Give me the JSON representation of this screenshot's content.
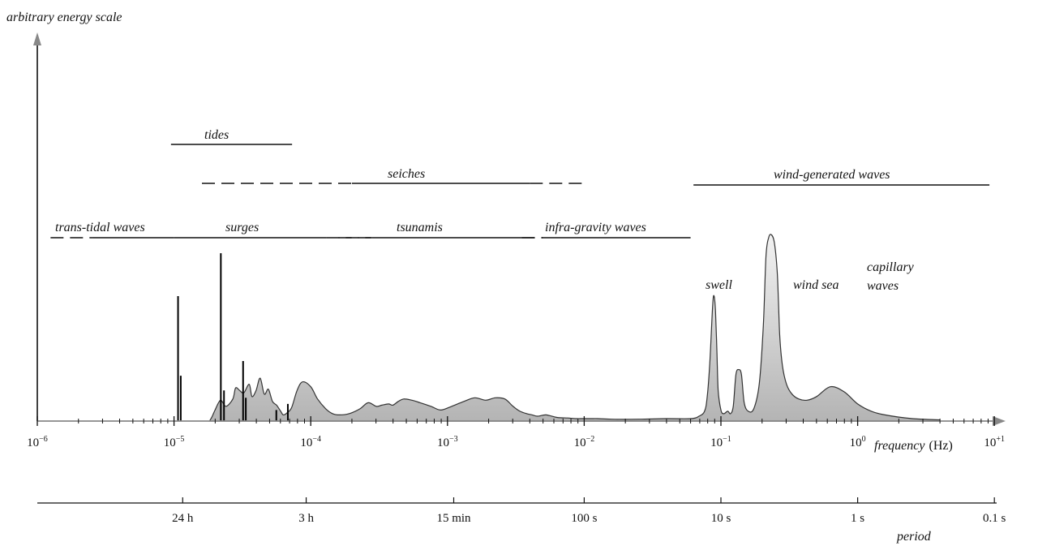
{
  "chart_data": {
    "type": "area",
    "xscale": "log",
    "xlim": [
      1e-06,
      10
    ],
    "ylabel": "arbitrary energy scale",
    "xlabel": "frequency",
    "xunit": "(Hz)",
    "x_ticks": [
      {
        "base": "10",
        "exp": "−6",
        "value": 1e-06
      },
      {
        "base": "10",
        "exp": "−5",
        "value": 1e-05
      },
      {
        "base": "10",
        "exp": "−4",
        "value": 0.0001
      },
      {
        "base": "10",
        "exp": "−3",
        "value": 0.001
      },
      {
        "base": "10",
        "exp": "−2",
        "value": 0.01
      },
      {
        "base": "10",
        "exp": "−1",
        "value": 0.1
      },
      {
        "base": "10",
        "exp": "0",
        "value": 1
      },
      {
        "base": "10",
        "exp": "+1",
        "value": 10
      }
    ],
    "period_axis": {
      "label": "period",
      "ticks": [
        {
          "label": "24 h",
          "freq": 1.157e-05
        },
        {
          "label": "3 h",
          "freq": 9.26e-05
        },
        {
          "label": "15 min",
          "freq": 0.001111
        },
        {
          "label": "100 s",
          "freq": 0.01
        },
        {
          "label": "10 s",
          "freq": 0.1
        },
        {
          "label": "1 s",
          "freq": 1
        },
        {
          "label": "0.1 s",
          "freq": 10
        }
      ]
    },
    "bands": [
      {
        "label": "tides",
        "from": 9.5e-06,
        "to": 7.3e-05,
        "dash_from": null,
        "dash_to": null
      },
      {
        "label": "seiches",
        "from": 0.0002,
        "to": 0.004,
        "dash_from": 1.6e-05,
        "dash_to": 0.01
      },
      {
        "label": "wind-generated waves",
        "from": 0.063,
        "to": 9.2,
        "dash_from": null,
        "dash_to": null
      },
      {
        "label": "trans-tidal waves",
        "from": 2.5e-06,
        "to": 1e-05,
        "dash_from": 1.25e-06,
        "dash_to": null
      },
      {
        "label": "surges",
        "from": 1e-05,
        "to": 0.00013,
        "dash_from": null,
        "dash_to": 0.00028
      },
      {
        "label": "tsunamis",
        "from": 0.00028,
        "to": 0.0035,
        "dash_from": 0.00016,
        "dash_to": 0.005
      },
      {
        "label": "infra-gravity waves",
        "from": 0.005,
        "to": 0.06,
        "dash_from": 0.0035,
        "dash_to": null
      }
    ],
    "spectrum": {
      "log10_freq": [
        -4.74,
        -4.72,
        -4.7,
        -4.66,
        -4.62,
        -4.57,
        -4.55,
        -4.52,
        -4.49,
        -4.45,
        -4.43,
        -4.4,
        -4.37,
        -4.34,
        -4.31,
        -4.28,
        -4.25,
        -4.22,
        -4.2,
        -4.17,
        -4.14,
        -4.1,
        -4.06,
        -4.0,
        -3.95,
        -3.89,
        -3.84,
        -3.79,
        -3.72,
        -3.64,
        -3.58,
        -3.52,
        -3.48,
        -3.43,
        -3.4,
        -3.36,
        -3.32,
        -3.26,
        -3.2,
        -3.12,
        -3.05,
        -2.97,
        -2.88,
        -2.8,
        -2.72,
        -2.65,
        -2.58,
        -2.52,
        -2.47,
        -2.42,
        -2.38,
        -2.34,
        -2.28,
        -2.2,
        -2.12,
        -2.06,
        -2.01,
        -1.95,
        -1.9,
        -1.8,
        -1.6,
        -1.4,
        -1.22,
        -1.16,
        -1.12,
        -1.1,
        -1.08,
        -1.06,
        -1.05,
        -1.04,
        -1.03,
        -1.02,
        -1.0,
        -0.98,
        -0.95,
        -0.93,
        -0.91,
        -0.89,
        -0.87,
        -0.85,
        -0.83,
        -0.8,
        -0.76,
        -0.72,
        -0.69,
        -0.67,
        -0.65,
        -0.63,
        -0.61,
        -0.59,
        -0.58,
        -0.57,
        -0.55,
        -0.52,
        -0.48,
        -0.43,
        -0.37,
        -0.3,
        -0.2,
        -0.1,
        0.0,
        0.1,
        0.2,
        0.4,
        0.6
      ],
      "energy": [
        0,
        4,
        9,
        17,
        12,
        18,
        27,
        25,
        23,
        30,
        20,
        25,
        35,
        22,
        26,
        16,
        13,
        8,
        5,
        7,
        11,
        25,
        32,
        28,
        18,
        10,
        6,
        5,
        6,
        10,
        15,
        12,
        13,
        14,
        13,
        16,
        18,
        17,
        15,
        12,
        9,
        12,
        16,
        19,
        17,
        19,
        18,
        12,
        8,
        6,
        5,
        4,
        5,
        3,
        2.5,
        2,
        2,
        2,
        2,
        1.5,
        1.5,
        2,
        2,
        4,
        8,
        20,
        50,
        95,
        102,
        90,
        60,
        25,
        9,
        6,
        8,
        6,
        12,
        38,
        42,
        38,
        15,
        8,
        10,
        30,
        78,
        135,
        150,
        152,
        146,
        125,
        100,
        70,
        45,
        30,
        22,
        18,
        17,
        20,
        28,
        24,
        14,
        8,
        5,
        2,
        1
      ]
    },
    "lines": [
      {
        "freq": 1.07e-05,
        "energy": 102
      },
      {
        "freq": 1.12e-05,
        "energy": 37
      },
      {
        "freq": 2.2e-05,
        "energy": 137
      },
      {
        "freq": 2.32e-05,
        "energy": 25
      },
      {
        "freq": 3.2e-05,
        "energy": 49
      },
      {
        "freq": 3.35e-05,
        "energy": 19
      },
      {
        "freq": 5.6e-05,
        "energy": 9
      },
      {
        "freq": 6.8e-05,
        "energy": 14
      }
    ],
    "annotations": [
      {
        "text": "swell"
      },
      {
        "text": "wind sea"
      },
      {
        "text": "capillary",
        "text2": "waves"
      }
    ]
  }
}
